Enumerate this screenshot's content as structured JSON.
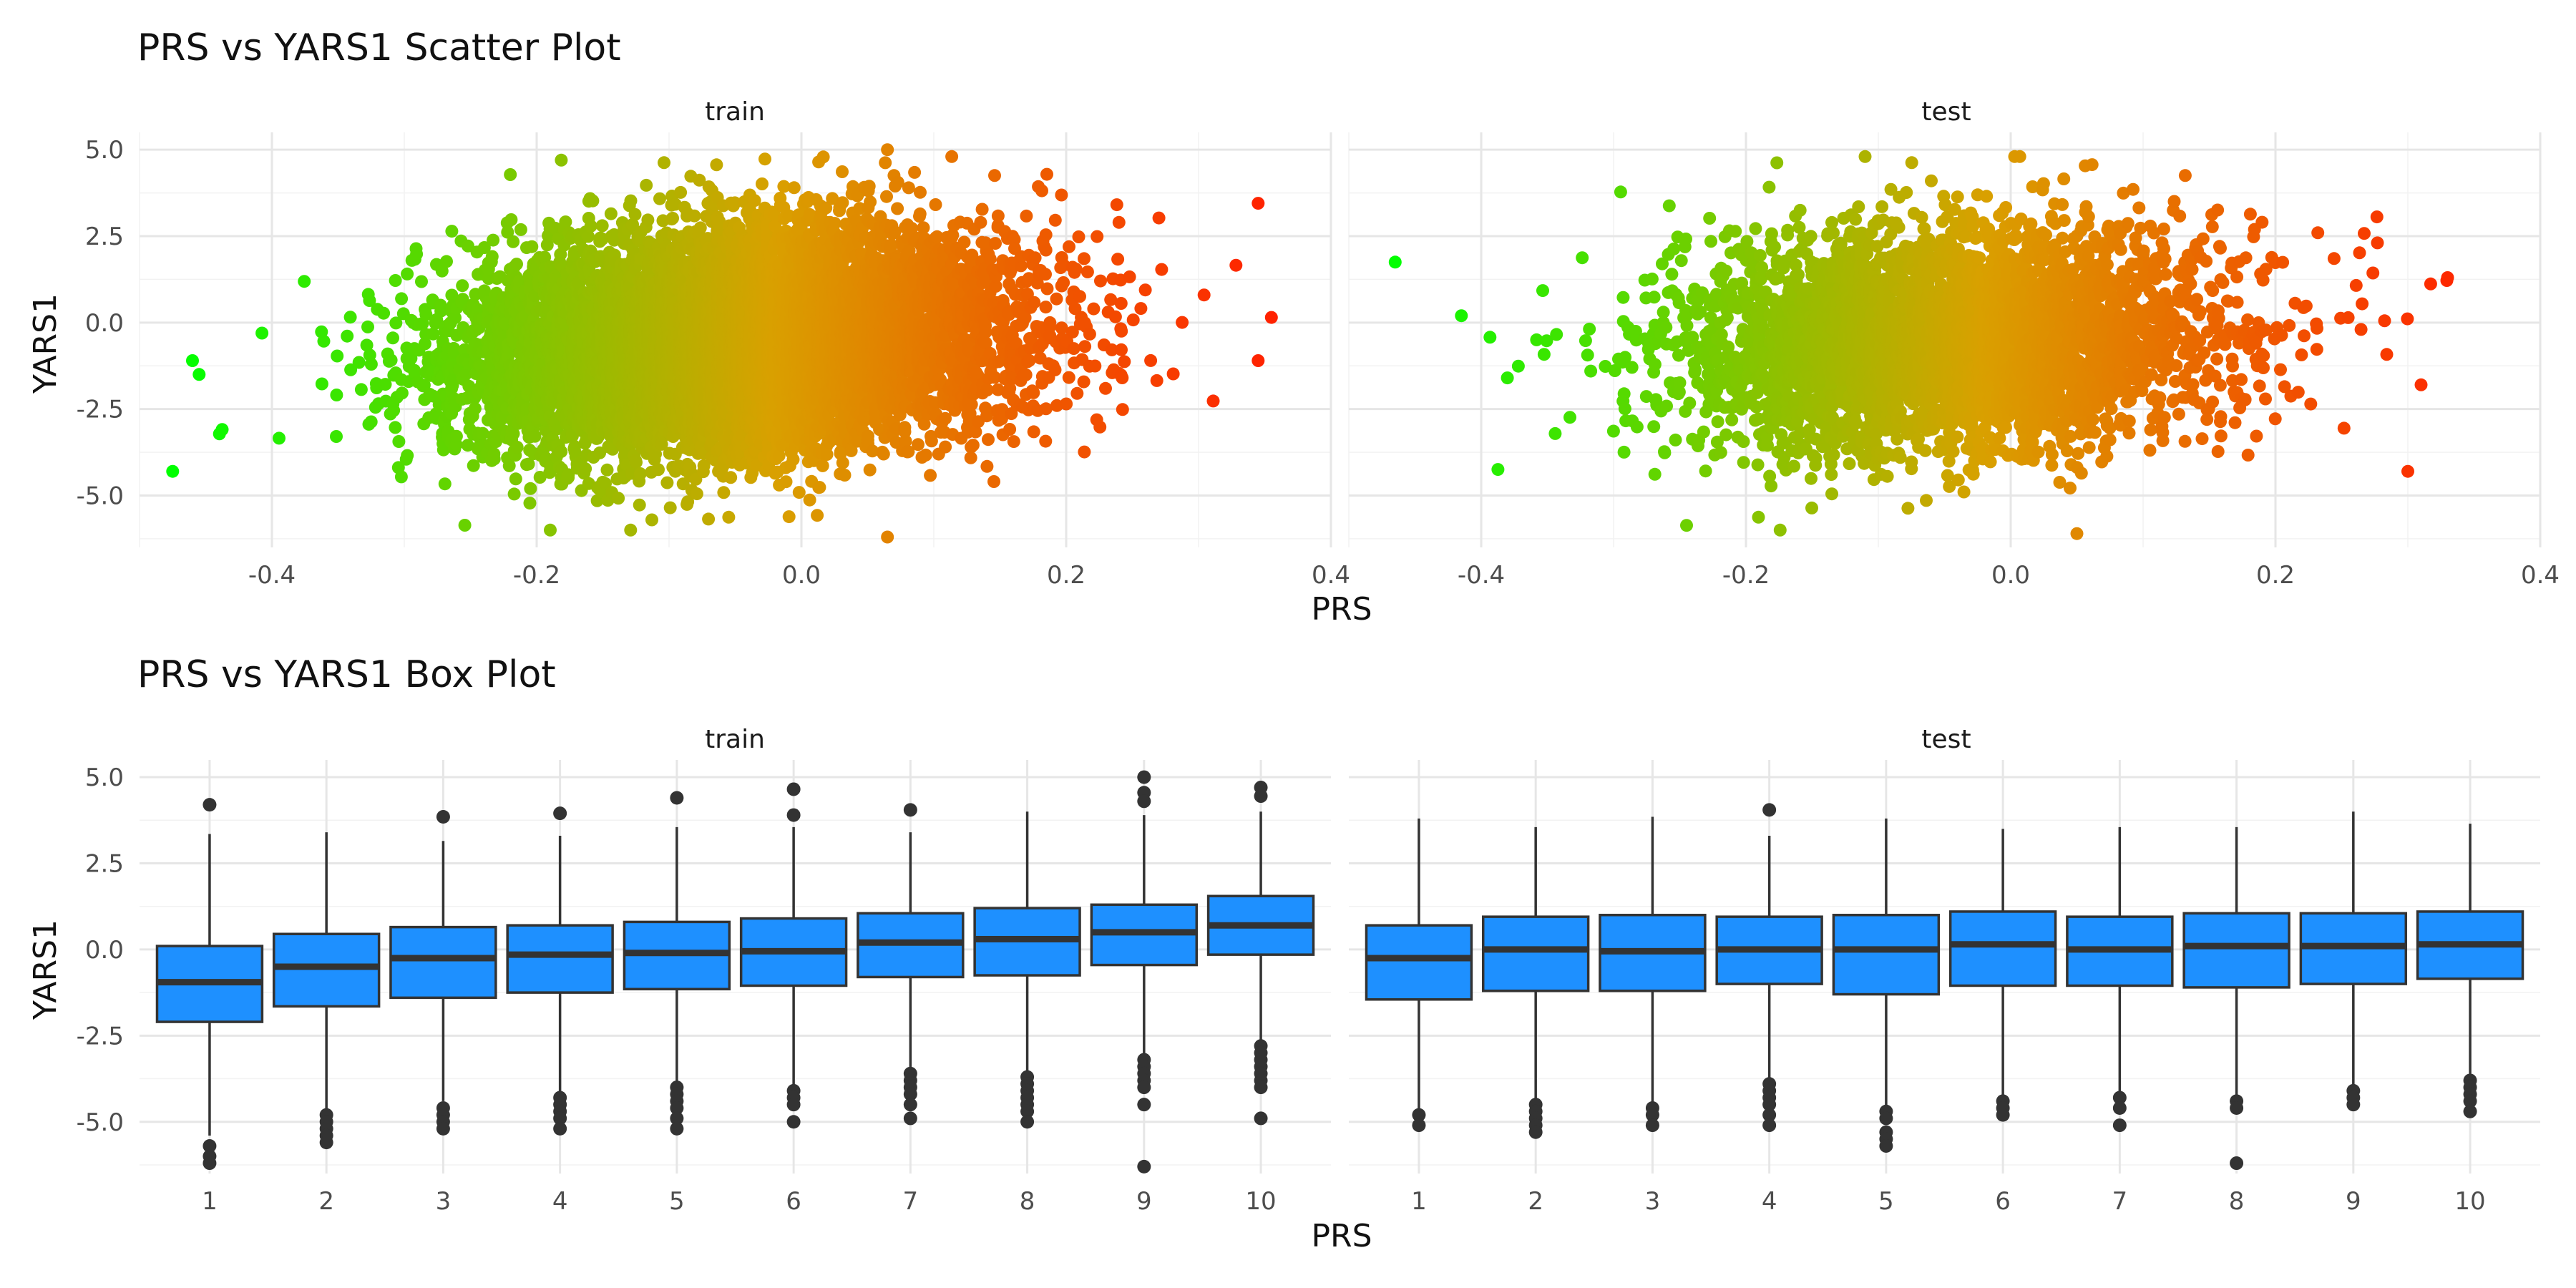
{
  "plots": [
    {
      "title": "PRS vs YARS1 Scatter Plot",
      "xlabel": "PRS",
      "ylabel": "YARS1"
    },
    {
      "title": "PRS vs YARS1 Box Plot",
      "xlabel": "PRS",
      "ylabel": "YARS1"
    }
  ],
  "colors": {
    "low": "#00ff00",
    "mid": "#d9a000",
    "high": "#ff2200",
    "box_fill": "#1e90ff",
    "box_edge": "#333333",
    "outlier": "#333333"
  },
  "chart_data": [
    {
      "type": "scatter",
      "title": "PRS vs YARS1 Scatter Plot",
      "xlabel": "PRS",
      "ylabel": "YARS1",
      "facets": [
        "train",
        "test"
      ],
      "xlim": [
        -0.5,
        0.4
      ],
      "ylim": [
        -6.5,
        5.5
      ],
      "x_ticks": [
        "-0.4",
        "-0.2",
        "0.0",
        "0.2",
        "0.4"
      ],
      "y_ticks": [
        "5.0",
        "2.5",
        "0.0",
        "-2.5",
        "-5.0"
      ],
      "color_scale": "PRS (green low to red high)",
      "notable_points": {
        "train": [
          {
            "x": -0.475,
            "y": -4.3
          },
          {
            "x": -0.46,
            "y": -1.1
          },
          {
            "x": -0.455,
            "y": -1.5
          },
          {
            "x": 0.355,
            "y": 0.15
          },
          {
            "x": 0.345,
            "y": 3.45
          },
          {
            "x": 0.345,
            "y": -1.1
          },
          {
            "x": 0.065,
            "y": 5.0
          },
          {
            "x": 0.065,
            "y": -6.2
          }
        ],
        "test": [
          {
            "x": -0.465,
            "y": 1.75
          },
          {
            "x": -0.415,
            "y": 0.2
          },
          {
            "x": 0.33,
            "y": 1.3
          },
          {
            "x": 0.31,
            "y": -1.8
          },
          {
            "x": 0.3,
            "y": -4.3
          },
          {
            "x": 0.05,
            "y": -6.1
          },
          {
            "x": -0.06,
            "y": 4.1
          }
        ]
      }
    },
    {
      "type": "box",
      "title": "PRS vs YARS1 Box Plot",
      "xlabel": "PRS",
      "ylabel": "YARS1",
      "categories": [
        "1",
        "2",
        "3",
        "4",
        "5",
        "6",
        "7",
        "8",
        "9",
        "10"
      ],
      "ylim": [
        -6.5,
        5.5
      ],
      "y_ticks": [
        "5.0",
        "2.5",
        "0.0",
        "-2.5",
        "-5.0"
      ],
      "series": [
        {
          "facet": "train",
          "boxes": [
            {
              "q1": -2.1,
              "median": -0.95,
              "q3": 0.1,
              "lower": -5.4,
              "upper": 3.35,
              "outliers": [
                4.2,
                -5.7,
                -6.0,
                -6.2
              ]
            },
            {
              "q1": -1.65,
              "median": -0.5,
              "q3": 0.45,
              "lower": -4.7,
              "upper": 3.4,
              "outliers": [
                -4.8,
                -5.0,
                -5.2,
                -5.4,
                -5.6
              ]
            },
            {
              "q1": -1.4,
              "median": -0.25,
              "q3": 0.65,
              "lower": -4.4,
              "upper": 3.15,
              "outliers": [
                3.85,
                -4.6,
                -4.8,
                -5.0,
                -5.2
              ]
            },
            {
              "q1": -1.25,
              "median": -0.15,
              "q3": 0.7,
              "lower": -4.2,
              "upper": 3.3,
              "outliers": [
                3.95,
                -4.3,
                -4.5,
                -4.7,
                -4.9,
                -5.2
              ]
            },
            {
              "q1": -1.15,
              "median": -0.1,
              "q3": 0.8,
              "lower": -3.9,
              "upper": 3.55,
              "outliers": [
                4.4,
                -4.0,
                -4.2,
                -4.4,
                -4.6,
                -4.9,
                -5.2
              ]
            },
            {
              "q1": -1.05,
              "median": -0.05,
              "q3": 0.9,
              "lower": -4.0,
              "upper": 3.55,
              "outliers": [
                4.65,
                3.9,
                -4.1,
                -4.3,
                -4.5,
                -5.0
              ]
            },
            {
              "q1": -0.8,
              "median": 0.2,
              "q3": 1.05,
              "lower": -3.5,
              "upper": 3.4,
              "outliers": [
                4.05,
                -3.6,
                -3.8,
                -4.0,
                -4.2,
                -4.5,
                -4.9
              ]
            },
            {
              "q1": -0.75,
              "median": 0.3,
              "q3": 1.2,
              "lower": -3.6,
              "upper": 4.0,
              "outliers": [
                -3.7,
                -3.9,
                -4.1,
                -4.3,
                -4.5,
                -4.7,
                -5.0
              ]
            },
            {
              "q1": -0.45,
              "median": 0.5,
              "q3": 1.3,
              "lower": -3.1,
              "upper": 3.9,
              "outliers": [
                5.0,
                4.55,
                4.3,
                -3.2,
                -3.4,
                -3.6,
                -3.8,
                -4.0,
                -4.5,
                -6.3
              ]
            },
            {
              "q1": -0.15,
              "median": 0.7,
              "q3": 1.55,
              "lower": -2.7,
              "upper": 4.0,
              "outliers": [
                4.7,
                4.45,
                -2.8,
                -3.0,
                -3.2,
                -3.4,
                -3.6,
                -3.8,
                -4.0,
                -4.9
              ]
            }
          ]
        },
        {
          "facet": "test",
          "boxes": [
            {
              "q1": -1.45,
              "median": -0.25,
              "q3": 0.7,
              "lower": -4.7,
              "upper": 3.8,
              "outliers": [
                -4.8,
                -5.1
              ]
            },
            {
              "q1": -1.2,
              "median": 0.0,
              "q3": 0.95,
              "lower": -4.4,
              "upper": 3.55,
              "outliers": [
                -4.5,
                -4.7,
                -4.9,
                -5.1,
                -5.3
              ]
            },
            {
              "q1": -1.2,
              "median": -0.05,
              "q3": 1.0,
              "lower": -4.5,
              "upper": 3.85,
              "outliers": [
                -4.6,
                -4.8,
                -5.1
              ]
            },
            {
              "q1": -1.0,
              "median": 0.0,
              "q3": 0.95,
              "lower": -3.8,
              "upper": 3.3,
              "outliers": [
                4.05,
                -3.9,
                -4.1,
                -4.3,
                -4.5,
                -4.8,
                -5.1
              ]
            },
            {
              "q1": -1.3,
              "median": 0.0,
              "q3": 1.0,
              "lower": -4.6,
              "upper": 3.8,
              "outliers": [
                -4.7,
                -4.9,
                -5.3,
                -5.5,
                -5.7
              ]
            },
            {
              "q1": -1.05,
              "median": 0.15,
              "q3": 1.1,
              "lower": -4.3,
              "upper": 3.5,
              "outliers": [
                -4.4,
                -4.6,
                -4.8
              ]
            },
            {
              "q1": -1.05,
              "median": 0.0,
              "q3": 0.95,
              "lower": -4.2,
              "upper": 3.55,
              "outliers": [
                -4.3,
                -4.6,
                -5.1
              ]
            },
            {
              "q1": -1.1,
              "median": 0.1,
              "q3": 1.05,
              "lower": -4.3,
              "upper": 3.55,
              "outliers": [
                -4.4,
                -4.6,
                -6.2
              ]
            },
            {
              "q1": -1.0,
              "median": 0.1,
              "q3": 1.05,
              "lower": -4.0,
              "upper": 4.0,
              "outliers": [
                -4.1,
                -4.3,
                -4.5
              ]
            },
            {
              "q1": -0.85,
              "median": 0.15,
              "q3": 1.1,
              "lower": -3.7,
              "upper": 3.65,
              "outliers": [
                -3.8,
                -4.0,
                -4.2,
                -4.4,
                -4.7
              ]
            }
          ]
        }
      ]
    }
  ]
}
